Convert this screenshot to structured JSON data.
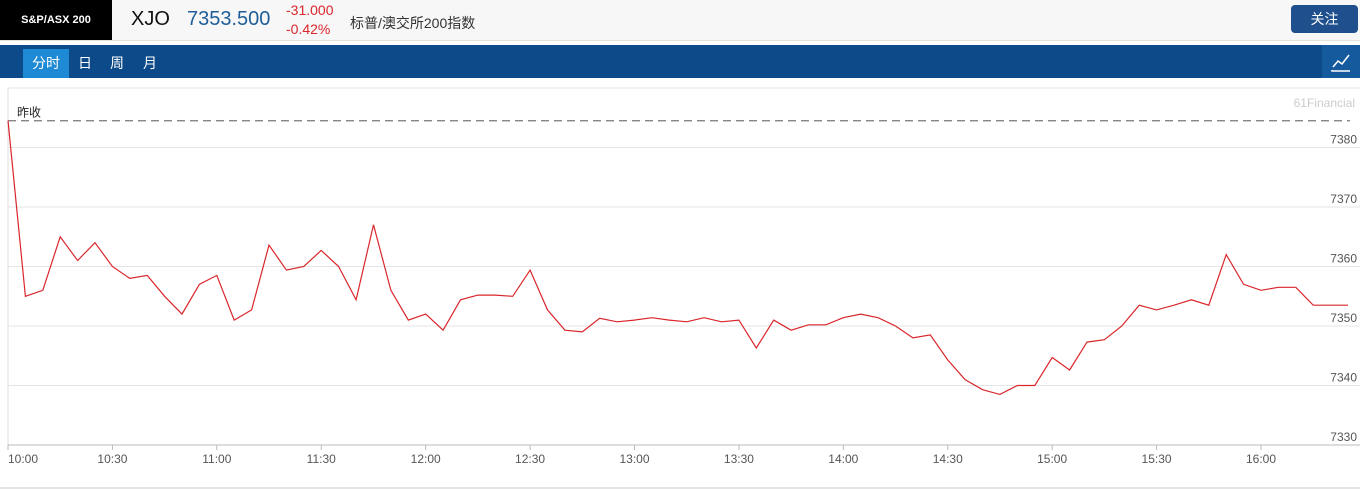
{
  "header": {
    "badge": "S&P/ASX 200",
    "symbol": "XJO",
    "price": "7353.500",
    "change": "-31.000",
    "change_pct": "-0.42%",
    "name": "标普/澳交所200指数",
    "follow_button": "关注"
  },
  "tabs": [
    "分时",
    "日",
    "周",
    "月"
  ],
  "chart_data": {
    "type": "line",
    "watermark": "61Financial",
    "color": "#d9262b",
    "reference_line": {
      "label": "昨收",
      "value": 7384.5
    },
    "x": [
      "10:00",
      "10:05",
      "10:10",
      "10:15",
      "10:20",
      "10:25",
      "10:30",
      "10:35",
      "10:40",
      "10:45",
      "10:50",
      "10:55",
      "11:00",
      "11:05",
      "11:10",
      "11:15",
      "11:20",
      "11:25",
      "11:30",
      "11:35",
      "11:40",
      "11:45",
      "11:50",
      "11:55",
      "12:00",
      "12:05",
      "12:10",
      "12:15",
      "12:20",
      "12:25",
      "12:30",
      "12:35",
      "12:40",
      "12:45",
      "12:50",
      "12:55",
      "13:00",
      "13:05",
      "13:10",
      "13:15",
      "13:20",
      "13:25",
      "13:30",
      "13:35",
      "13:40",
      "13:45",
      "13:50",
      "13:55",
      "14:00",
      "14:05",
      "14:10",
      "14:15",
      "14:20",
      "14:25",
      "14:30",
      "14:35",
      "14:40",
      "14:45",
      "14:50",
      "14:55",
      "15:00",
      "15:05",
      "15:10",
      "15:15",
      "15:20",
      "15:25",
      "15:30",
      "15:35",
      "15:40",
      "15:45",
      "15:50",
      "15:55",
      "16:00",
      "16:05",
      "16:10",
      "16:15",
      "16:20",
      "16:25"
    ],
    "values": [
      7384.5,
      7355,
      7356,
      7365,
      7361,
      7364,
      7360,
      7358,
      7358.5,
      7355,
      7352,
      7357,
      7358.5,
      7351,
      7352.7,
      7363.6,
      7359.4,
      7360,
      7362.7,
      7360,
      7354.4,
      7367,
      7356,
      7351,
      7352,
      7349.3,
      7354.4,
      7355.2,
      7355.2,
      7355,
      7359.4,
      7352.7,
      7349.3,
      7349,
      7351.3,
      7350.7,
      7351,
      7351.4,
      7351,
      7350.7,
      7351.4,
      7350.7,
      7351,
      7346.3,
      7351,
      7349.3,
      7350.2,
      7350.2,
      7351.4,
      7352,
      7351.4,
      7350,
      7348,
      7348.5,
      7344.3,
      7341,
      7339.3,
      7338.5,
      7340,
      7340,
      7344.7,
      7342.6,
      7347.3,
      7347.7,
      7350,
      7353.5,
      7352.7,
      7353.5,
      7354.4,
      7353.5,
      7362,
      7357,
      7356,
      7356.5,
      7356.5,
      7353.5,
      7353.5,
      7353.5
    ],
    "ylim": [
      7330,
      7390
    ],
    "yticks": [
      7330,
      7340,
      7350,
      7360,
      7370,
      7380
    ],
    "xticks": [
      "10:00",
      "10:30",
      "11:00",
      "11:30",
      "12:00",
      "12:30",
      "13:00",
      "13:30",
      "14:00",
      "14:30",
      "15:00",
      "15:30",
      "16:00"
    ],
    "grid": true
  }
}
